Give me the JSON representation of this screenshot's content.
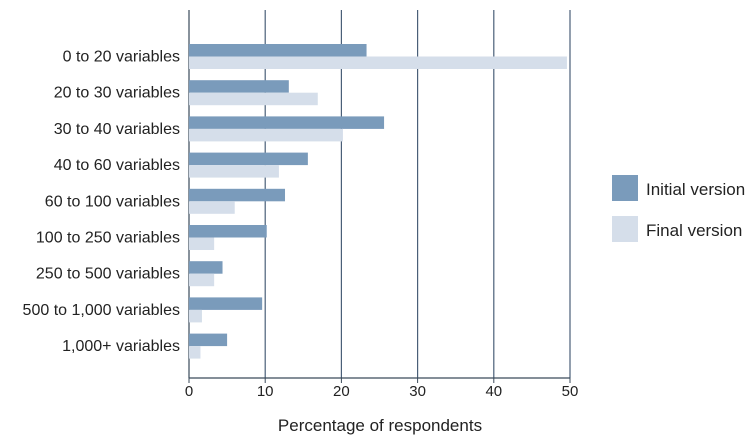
{
  "chart_data": {
    "type": "bar",
    "orientation": "horizontal",
    "title": "",
    "xlabel": "Percentage of respondents",
    "ylabel": "",
    "xlim": [
      0,
      50
    ],
    "xticks": [
      0,
      10,
      20,
      30,
      40,
      50
    ],
    "grid": "vertical",
    "legend_position": "right",
    "categories": [
      "0 to 20 variables",
      "20 to 30 variables",
      "30 to 40 variables",
      "40 to 60 variables",
      "60 to 100 variables",
      "100 to 250 variables",
      "250 to 500 variables",
      "500 to 1,000 variables",
      "1,000+ variables"
    ],
    "series": [
      {
        "name": "Initial version",
        "color": "#7a9bbb",
        "values": [
          23.3,
          13.1,
          25.6,
          15.6,
          12.6,
          10.2,
          4.4,
          9.6,
          5.0
        ]
      },
      {
        "name": "Final version",
        "color": "#d5deea",
        "values": [
          49.6,
          16.9,
          20.2,
          11.8,
          6.0,
          3.3,
          3.3,
          1.7,
          1.5
        ]
      }
    ]
  }
}
